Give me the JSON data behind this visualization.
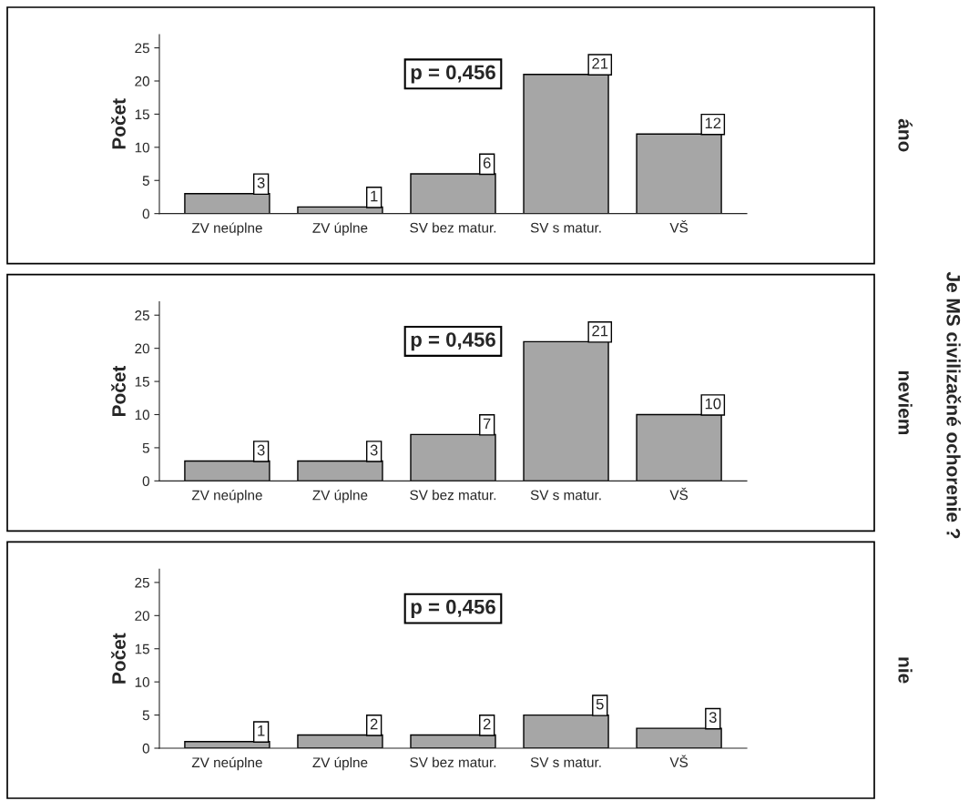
{
  "chart_data": [
    {
      "type": "bar",
      "categories": [
        "ZV neúplne",
        "ZV úplne",
        "SV bez matur.",
        "SV s matur.",
        "VŠ"
      ],
      "values": [
        3,
        1,
        6,
        21,
        12
      ],
      "color": "#a6a6a6",
      "ylabel": "Počet",
      "y2label": "áno",
      "ylim": [
        0,
        27
      ],
      "yticks": [
        0,
        5,
        10,
        15,
        20,
        25
      ],
      "data_labels": true,
      "grid": false,
      "annotations": [
        "p = 0,456",
        "Je MS civilizačné ochorenie ?"
      ]
    },
    {
      "type": "bar",
      "categories": [
        "ZV neúplne",
        "ZV úplne",
        "SV bez matur.",
        "SV s matur.",
        "VŠ"
      ],
      "values": [
        3,
        3,
        7,
        21,
        10
      ],
      "color": "#a6a6a6",
      "ylabel": "Počet",
      "y2label": "neviem",
      "ylim": [
        0,
        27
      ],
      "yticks": [
        0,
        5,
        10,
        15,
        20,
        25
      ],
      "data_labels": true,
      "grid": false,
      "annotations": [
        "p = 0,456"
      ]
    },
    {
      "type": "bar",
      "categories": [
        "ZV neúplne",
        "ZV úplne",
        "SV bez matur.",
        "SV s matur.",
        "VŠ"
      ],
      "values": [
        1,
        2,
        2,
        5,
        3
      ],
      "color": "#a6a6a6",
      "ylabel": "Počet",
      "y2label": "nie",
      "ylim": [
        0,
        27
      ],
      "yticks": [
        0,
        5,
        10,
        15,
        20,
        25
      ],
      "data_labels": true,
      "grid": false,
      "annotations": [
        "p = 0,456"
      ]
    }
  ]
}
